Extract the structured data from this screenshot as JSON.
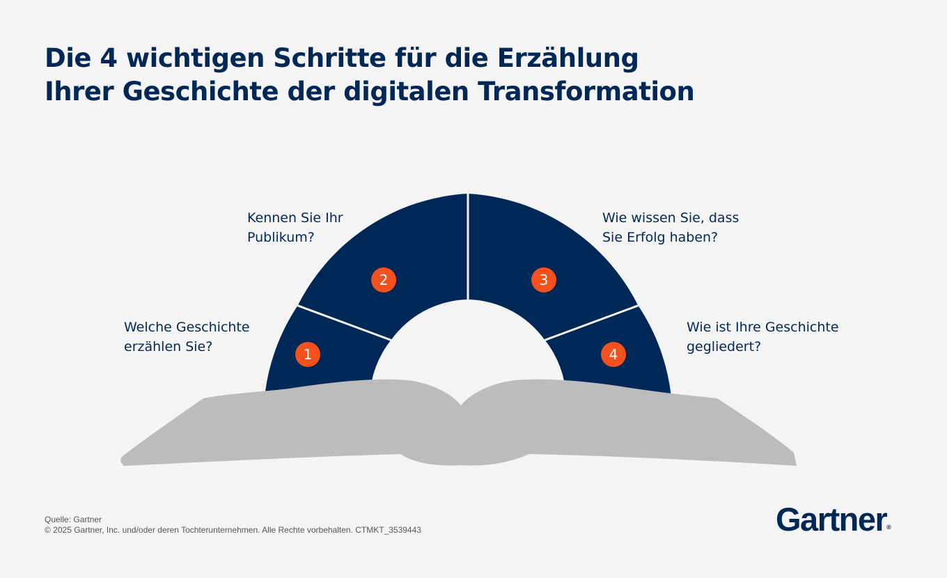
{
  "title": {
    "line1": "Die 4 wichtigen Schritte für die Erzählung",
    "line2": "Ihrer Geschichte der digitalen Transformation"
  },
  "steps": [
    {
      "number": "1",
      "line1": "Welche Geschichte",
      "line2": "erzählen Sie?"
    },
    {
      "number": "2",
      "line1": "Kennen Sie Ihr",
      "line2": "Publikum?"
    },
    {
      "number": "3",
      "line1": "Wie wissen Sie, dass",
      "line2": "Sie Erfolg haben?"
    },
    {
      "number": "4",
      "line1": "Wie ist Ihre Geschichte",
      "line2": "gegliedert?"
    }
  ],
  "footer": {
    "source": "Quelle: Gartner",
    "copyright": "© 2025 Gartner, Inc. und/oder deren Tochterunternehmen. Alle Rechte vorbehalten. CTMKT_3539443"
  },
  "logo": {
    "text": "Gartner",
    "mark": "®"
  },
  "colors": {
    "navy": "#002856",
    "accent": "#f4511e",
    "book": "#bcbcbc",
    "background": "#f4f4f4"
  }
}
